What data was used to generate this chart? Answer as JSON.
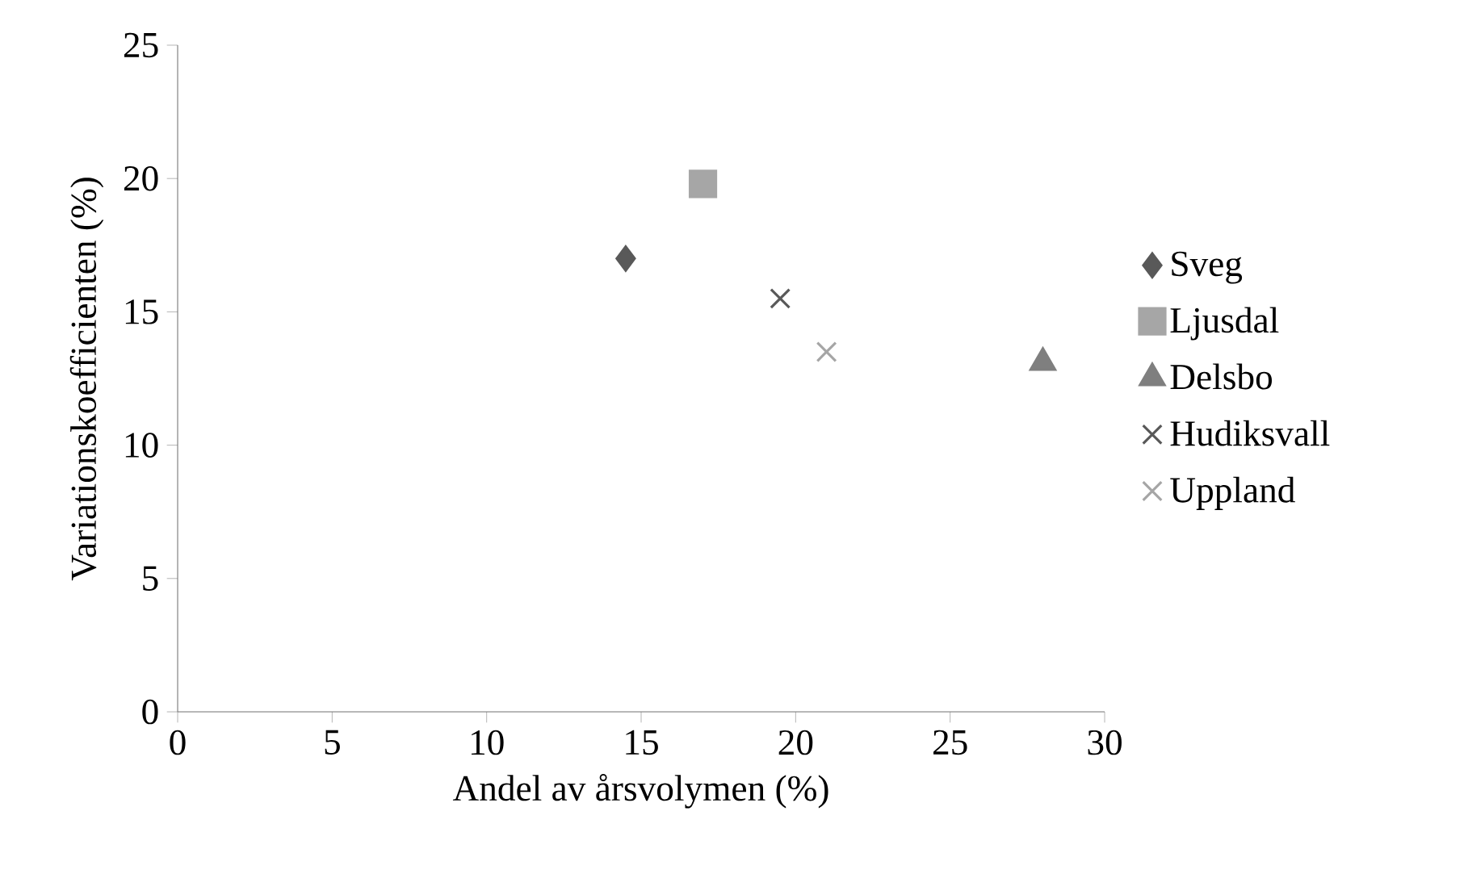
{
  "chart_data": {
    "type": "scatter",
    "xlabel": "Andel av årsvolymen (%)",
    "ylabel": "Variationskoefficienten (%)",
    "xlim": [
      0,
      30
    ],
    "xticks": [
      0,
      5,
      10,
      15,
      20,
      25,
      30
    ],
    "ylim": [
      0,
      25
    ],
    "yticks": [
      0,
      5,
      10,
      15,
      20,
      25
    ],
    "legend": "right",
    "series": [
      {
        "name": "Sveg",
        "color": "#595959",
        "marker": "diamond",
        "x": [
          14.5
        ],
        "values": [
          17.0
        ]
      },
      {
        "name": "Ljusdal",
        "color": "#a6a6a6",
        "marker": "square",
        "x": [
          17.0
        ],
        "values": [
          19.8
        ]
      },
      {
        "name": "Delsbo",
        "color": "#7f7f7f",
        "marker": "triangle",
        "x": [
          28.0
        ],
        "values": [
          13.1
        ]
      },
      {
        "name": "Hudiksvall",
        "color": "#595959",
        "marker": "cross",
        "x": [
          19.5
        ],
        "values": [
          15.5
        ]
      },
      {
        "name": "Uppland",
        "color": "#a6a6a6",
        "marker": "cross",
        "x": [
          21.0
        ],
        "values": [
          13.5
        ]
      }
    ]
  }
}
